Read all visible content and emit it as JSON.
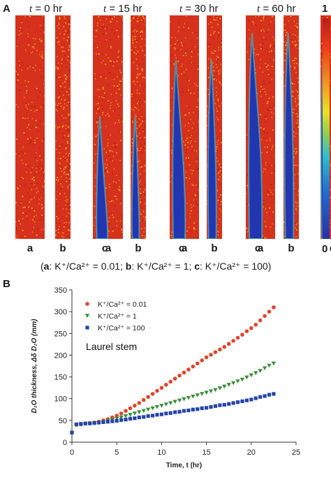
{
  "panel_a": {
    "letter": "A",
    "time_groups": [
      {
        "label_var": "t",
        "label_rest": " = 0 hr",
        "fraction": 0.0
      },
      {
        "label_var": "t",
        "label_rest": " = 15 hr",
        "fraction": 0.55
      },
      {
        "label_var": "t",
        "label_rest": " = 30 hr",
        "fraction": 0.8
      },
      {
        "label_var": "t",
        "label_rest": " = 60 hr",
        "fraction": 0.92
      }
    ],
    "strip_labels": [
      "a",
      "b",
      "c"
    ],
    "colorbar": {
      "max_label": "1",
      "min_label": "0"
    },
    "legend": {
      "open": "(",
      "a_key": "a",
      "a_text": ": K⁺/Ca²⁺ = 0.01;  ",
      "b_key": "b",
      "b_text": ": K⁺/Ca²⁺ = 1;  ",
      "c_key": "c",
      "c_text": ": K⁺/Ca²⁺ = 100)"
    },
    "colors": {
      "dry": "#d6311c",
      "wet": "#2236b0",
      "mid": "#3fb6c9"
    }
  },
  "panel_b": {
    "letter": "B",
    "annotation": "Laurel stem",
    "chart_data": {
      "type": "scatter",
      "xlabel": "Time, t (hr)",
      "ylabel": "D₂O thickness, Δδ D₂O (mm)",
      "xlim": [
        0,
        25
      ],
      "ylim": [
        0,
        350
      ],
      "xticks": [
        0,
        5,
        10,
        15,
        20,
        25
      ],
      "yticks": [
        0,
        50,
        100,
        150,
        200,
        250,
        300,
        350
      ],
      "legend_position": "top-left",
      "series": [
        {
          "name": "K⁺/Ca²⁺ = 0.01",
          "color": "#e0452c",
          "marker": "circle",
          "x": [
            0,
            0.5,
            1,
            1.5,
            2,
            2.5,
            3,
            3.5,
            4,
            4.5,
            5,
            5.5,
            6,
            6.5,
            7,
            7.5,
            8,
            8.5,
            9,
            9.5,
            10,
            10.5,
            11,
            11.5,
            12,
            12.5,
            13,
            13.5,
            14,
            14.5,
            15,
            15.5,
            16,
            16.5,
            17,
            17.5,
            18,
            18.5,
            19,
            19.5,
            20,
            20.5,
            21,
            21.5,
            22,
            22.5
          ],
          "y": [
            22,
            40,
            41,
            43,
            44,
            45,
            47,
            50,
            53,
            57,
            61,
            66,
            72,
            78,
            84,
            90,
            97,
            104,
            111,
            118,
            125,
            132,
            139,
            146,
            153,
            160,
            167,
            174,
            181,
            188,
            195,
            201,
            207,
            213,
            219,
            226,
            233,
            240,
            247,
            255,
            262,
            270,
            280,
            290,
            300,
            310
          ]
        },
        {
          "name": "K⁺/Ca²⁺ = 1",
          "color": "#3a8c3a",
          "marker": "triangle-down",
          "x": [
            0,
            0.5,
            1,
            1.5,
            2,
            2.5,
            3,
            3.5,
            4,
            4.5,
            5,
            5.5,
            6,
            6.5,
            7,
            7.5,
            8,
            8.5,
            9,
            9.5,
            10,
            10.5,
            11,
            11.5,
            12,
            12.5,
            13,
            13.5,
            14,
            14.5,
            15,
            15.5,
            16,
            16.5,
            17,
            17.5,
            18,
            18.5,
            19,
            19.5,
            20,
            20.5,
            21,
            21.5,
            22,
            22.5
          ],
          "y": [
            22,
            40,
            41,
            42,
            43,
            44,
            45,
            47,
            49,
            51,
            54,
            57,
            60,
            63,
            66,
            69,
            72,
            75,
            78,
            81,
            84,
            87,
            90,
            93,
            96,
            99,
            102,
            105,
            108,
            111,
            114,
            117,
            120,
            124,
            128,
            132,
            136,
            140,
            144,
            149,
            154,
            159,
            164,
            170,
            176,
            181
          ]
        },
        {
          "name": "K⁺/Ca²⁺ = 100",
          "color": "#2744a6",
          "marker": "square",
          "x": [
            0,
            0.5,
            1,
            1.5,
            2,
            2.5,
            3,
            3.5,
            4,
            4.5,
            5,
            5.5,
            6,
            6.5,
            7,
            7.5,
            8,
            8.5,
            9,
            9.5,
            10,
            10.5,
            11,
            11.5,
            12,
            12.5,
            13,
            13.5,
            14,
            14.5,
            15,
            15.5,
            16,
            16.5,
            17,
            17.5,
            18,
            18.5,
            19,
            19.5,
            20,
            20.5,
            21,
            21.5,
            22,
            22.5
          ],
          "y": [
            22,
            41,
            42,
            43,
            43,
            44,
            45,
            46,
            47,
            48,
            49,
            51,
            52,
            54,
            55,
            57,
            58,
            60,
            61,
            63,
            64,
            66,
            67,
            69,
            70,
            72,
            73,
            75,
            76,
            78,
            79,
            81,
            83,
            85,
            86,
            88,
            90,
            92,
            94,
            96,
            98,
            101,
            104,
            106,
            109,
            111
          ]
        }
      ]
    }
  }
}
